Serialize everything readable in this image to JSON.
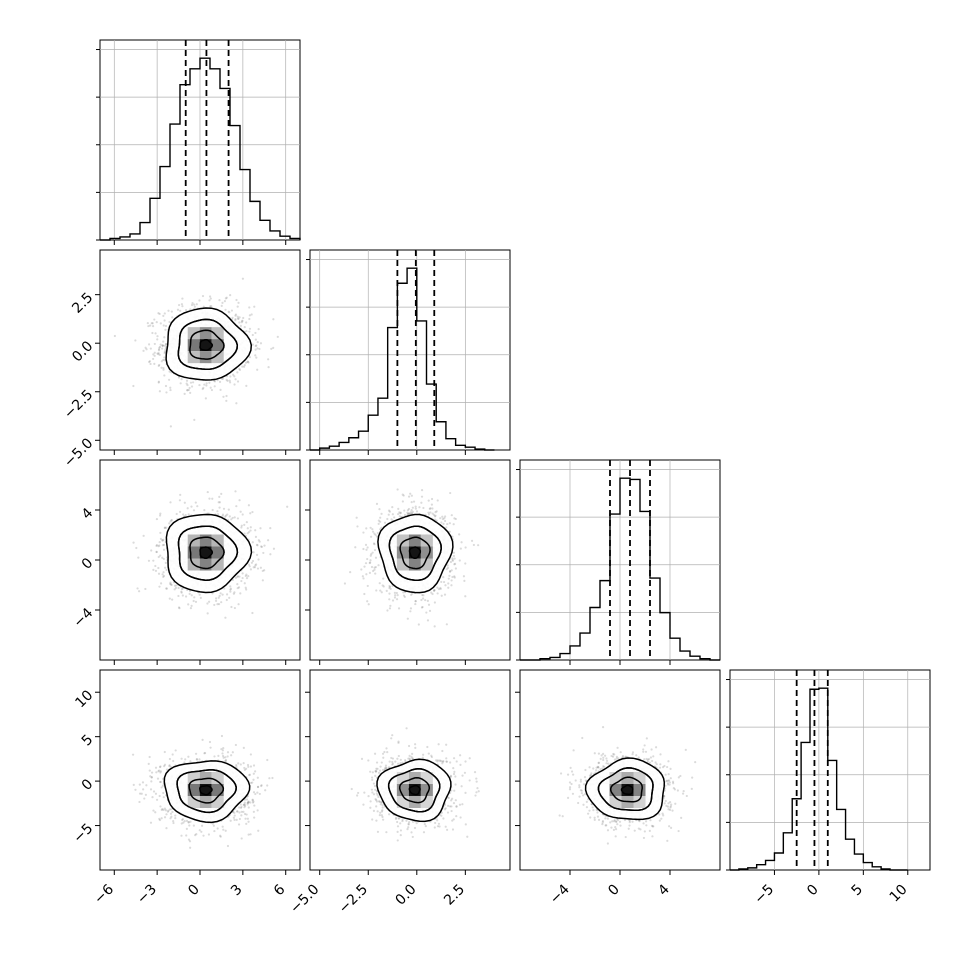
{
  "chart_data": {
    "type": "corner",
    "dimensions": 4,
    "grid": true,
    "colors": {
      "hist": "#000000",
      "grid": "#b0b0b0",
      "quantile": "#000000",
      "scatter": "#7f7f7f"
    },
    "axes": [
      {
        "range": [
          -7,
          7
        ],
        "ticks": [
          -6,
          -3,
          0,
          3,
          6
        ],
        "tick_labels": [
          "−6",
          "−3",
          "0",
          "3",
          "6"
        ],
        "quantiles": [
          -1.0,
          0.45,
          2.0
        ],
        "center": [
          0.4
        ],
        "hist": {
          "bins": [
            -7,
            -6.3,
            -5.6,
            -4.9,
            -4.2,
            -3.5,
            -2.8,
            -2.1,
            -1.4,
            -0.7,
            0,
            0.7,
            1.4,
            2.1,
            2.8,
            3.5,
            4.2,
            4.9,
            5.6,
            6.3,
            7
          ],
          "counts": [
            0,
            2,
            4,
            8,
            23,
            55,
            97,
            153,
            205,
            226,
            240,
            226,
            200,
            151,
            93,
            51,
            26,
            12,
            5,
            2
          ]
        }
      },
      {
        "range": [
          -5.5,
          4.8
        ],
        "ticks": [
          -5.0,
          -2.5,
          0.0,
          2.5
        ],
        "tick_labels": [
          "−5.0",
          "−2.5",
          "0.0",
          "2.5"
        ],
        "quantiles": [
          -1.0,
          -0.05,
          0.9
        ],
        "center": [
          -0.1
        ],
        "hist": {
          "bins": [
            -5.5,
            -5.0,
            -4.5,
            -4.0,
            -3.5,
            -3.0,
            -2.5,
            -2.0,
            -1.5,
            -1.0,
            -0.5,
            0,
            0.5,
            1.0,
            1.5,
            2.0,
            2.5,
            3.0,
            3.5,
            4.0
          ],
          "counts": [
            0,
            2,
            4,
            8,
            13,
            20,
            37,
            55,
            130,
            177,
            193,
            137,
            70,
            30,
            12,
            5,
            3,
            1,
            0
          ]
        }
      },
      {
        "range": [
          -8,
          8
        ],
        "ticks": [
          -4,
          0,
          4
        ],
        "tick_labels": [
          "−4",
          "0",
          "4"
        ],
        "quantiles": [
          -0.8,
          0.8,
          2.4
        ],
        "center": [
          0.6
        ],
        "hist": {
          "bins": [
            -8,
            -7.2,
            -6.4,
            -5.6,
            -4.8,
            -4.0,
            -3.2,
            -2.4,
            -1.6,
            -0.8,
            0,
            0.8,
            1.6,
            2.4,
            3.2,
            4.0,
            4.8,
            5.6,
            6.4,
            7.2,
            8
          ],
          "counts": [
            0,
            0,
            1,
            2,
            5,
            11,
            21,
            41,
            62,
            114,
            142,
            141,
            116,
            64,
            37,
            17,
            7,
            3,
            1,
            0
          ]
        }
      },
      {
        "range": [
          -10,
          12.5
        ],
        "ticks": [
          -5,
          0,
          5,
          10
        ],
        "tick_labels": [
          "−5",
          "0",
          "5",
          "10"
        ],
        "quantiles": [
          -2.5,
          -0.5,
          1.0
        ],
        "center": [
          -1.0
        ],
        "hist": {
          "bins": [
            -10,
            -9,
            -8,
            -7,
            -6,
            -5,
            -4,
            -3,
            -2,
            -1,
            0,
            1,
            2,
            3,
            4,
            5,
            6,
            7,
            8,
            9,
            10
          ],
          "counts": [
            0,
            1,
            2,
            5,
            9,
            16,
            35,
            67,
            120,
            170,
            171,
            103,
            57,
            29,
            15,
            7,
            3,
            1,
            0,
            0
          ]
        }
      }
    ],
    "y_tick_labels": {
      "1": {
        "ticks": [
          -5.0,
          -2.5,
          0.0,
          2.5
        ],
        "labels": [
          "−5.0",
          "−2.5",
          "0.0",
          "2.5"
        ]
      },
      "2": {
        "ticks": [
          -4,
          0,
          4
        ],
        "labels": [
          "−4",
          "0",
          "4"
        ]
      },
      "3": {
        "ticks": [
          -5,
          0,
          5,
          10
        ],
        "labels": [
          "−5",
          "0",
          "5",
          "10"
        ]
      }
    }
  }
}
